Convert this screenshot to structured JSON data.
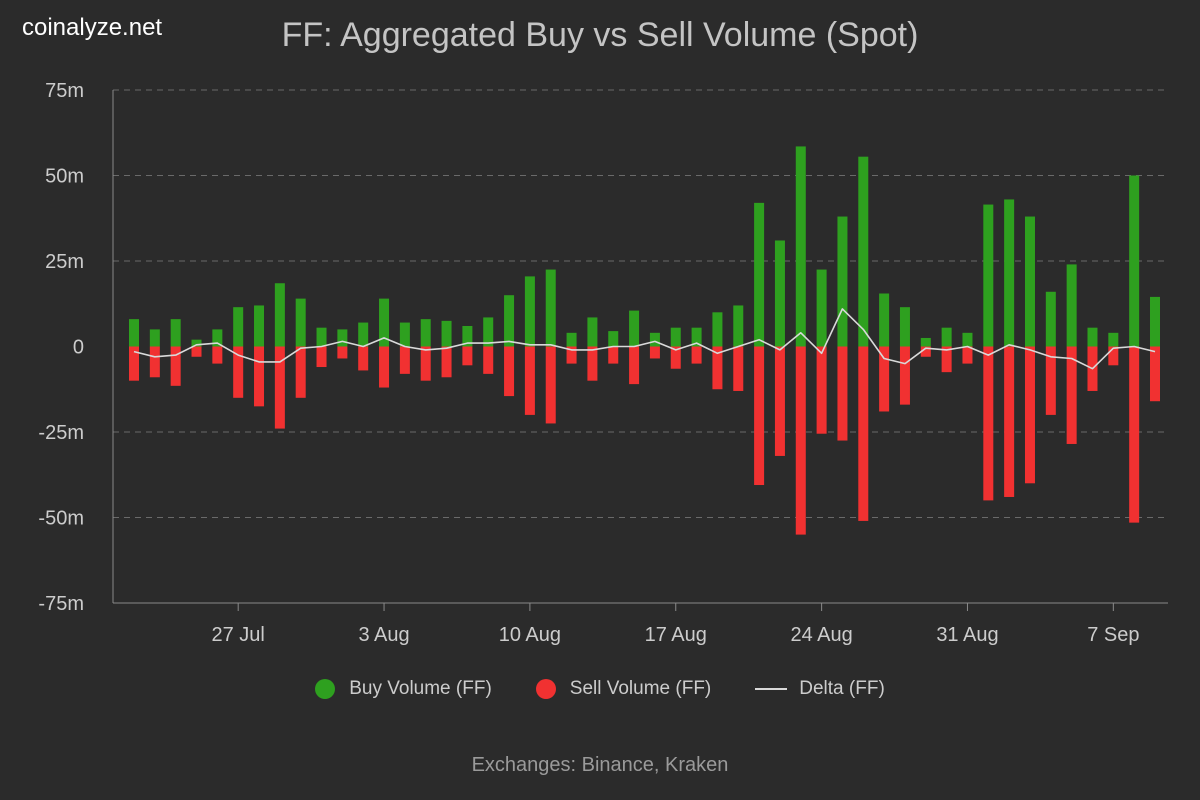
{
  "brand": "coinalyze.net",
  "footer": "Exchanges: Binance, Kraken",
  "chart_data": {
    "type": "bar",
    "title": "FF: Aggregated Buy vs Sell Volume (Spot)",
    "unit": "millions",
    "ylim": [
      -75,
      75
    ],
    "y_ticks": [
      75,
      50,
      25,
      0,
      -25,
      -50,
      -75
    ],
    "y_tick_labels": [
      "75m",
      "50m",
      "25m",
      "0",
      "-25m",
      "-50m",
      "-75m"
    ],
    "x_tick_labels": [
      "27 Jul",
      "3 Aug",
      "10 Aug",
      "17 Aug",
      "24 Aug",
      "31 Aug",
      "7 Sep"
    ],
    "x_tick_indices": [
      5,
      12,
      19,
      26,
      33,
      40,
      47
    ],
    "grid": true,
    "legend_position": "bottom",
    "x": [
      "22 Jul",
      "23 Jul",
      "24 Jul",
      "25 Jul",
      "26 Jul",
      "27 Jul",
      "28 Jul",
      "29 Jul",
      "30 Jul",
      "31 Jul",
      "1 Aug",
      "2 Aug",
      "3 Aug",
      "4 Aug",
      "5 Aug",
      "6 Aug",
      "7 Aug",
      "8 Aug",
      "9 Aug",
      "10 Aug",
      "11 Aug",
      "12 Aug",
      "13 Aug",
      "14 Aug",
      "15 Aug",
      "16 Aug",
      "17 Aug",
      "18 Aug",
      "19 Aug",
      "20 Aug",
      "21 Aug",
      "22 Aug",
      "23 Aug",
      "24 Aug",
      "25 Aug",
      "26 Aug",
      "27 Aug",
      "28 Aug",
      "29 Aug",
      "30 Aug",
      "31 Aug",
      "1 Sep",
      "2 Sep",
      "3 Sep",
      "4 Sep",
      "5 Sep",
      "6 Sep",
      "7 Sep",
      "8 Sep",
      "9 Sep"
    ],
    "series": [
      {
        "name": "Buy Volume (FF)",
        "kind": "bar",
        "color": "#2ea01f",
        "values": [
          8,
          5,
          8,
          2,
          5,
          11.5,
          12,
          18.5,
          14,
          5.5,
          5,
          7,
          14,
          7,
          8,
          7.5,
          6,
          8.5,
          15,
          20.5,
          22.5,
          4,
          8.5,
          4.5,
          10.5,
          4,
          5.5,
          5.5,
          10,
          12,
          42,
          31,
          58.5,
          22.5,
          38,
          55.5,
          15.5,
          11.5,
          2.5,
          5.5,
          4,
          41.5,
          43,
          38,
          16,
          24,
          5.5,
          4,
          50,
          14.5
        ]
      },
      {
        "name": "Sell Volume (FF)",
        "kind": "bar",
        "color": "#f13131",
        "values": [
          -10,
          -9,
          -11.5,
          -3,
          -5,
          -15,
          -17.5,
          -24,
          -15,
          -6,
          -3.5,
          -7,
          -12,
          -8,
          -10,
          -9,
          -5.5,
          -8,
          -14.5,
          -20,
          -22.5,
          -5,
          -10,
          -5,
          -11,
          -3.5,
          -6.5,
          -5,
          -12.5,
          -13,
          -40.5,
          -32,
          -55,
          -25.5,
          -27.5,
          -51,
          -19,
          -17,
          -3,
          -7.5,
          -5,
          -45,
          -44,
          -40,
          -20,
          -28.5,
          -13,
          -5.5,
          -51.5,
          -16
        ]
      },
      {
        "name": "Delta (FF)",
        "kind": "line",
        "color": "#d9d9d9",
        "values": [
          -1.5,
          -3,
          -2.5,
          0.5,
          1,
          -2.5,
          -4.5,
          -4.5,
          -0.5,
          0,
          1.5,
          0,
          2.5,
          0,
          -1,
          -0.5,
          1,
          1,
          1.5,
          0.5,
          0.5,
          -1,
          -1,
          0,
          0,
          1.5,
          -1,
          1,
          -2,
          0,
          2,
          -1,
          4,
          -2,
          11,
          5,
          -3.5,
          -5,
          -0.5,
          -1,
          0,
          -2.5,
          0.5,
          -1,
          -3,
          -3.5,
          -6.5,
          -0.5,
          0,
          -1.5
        ]
      }
    ]
  }
}
